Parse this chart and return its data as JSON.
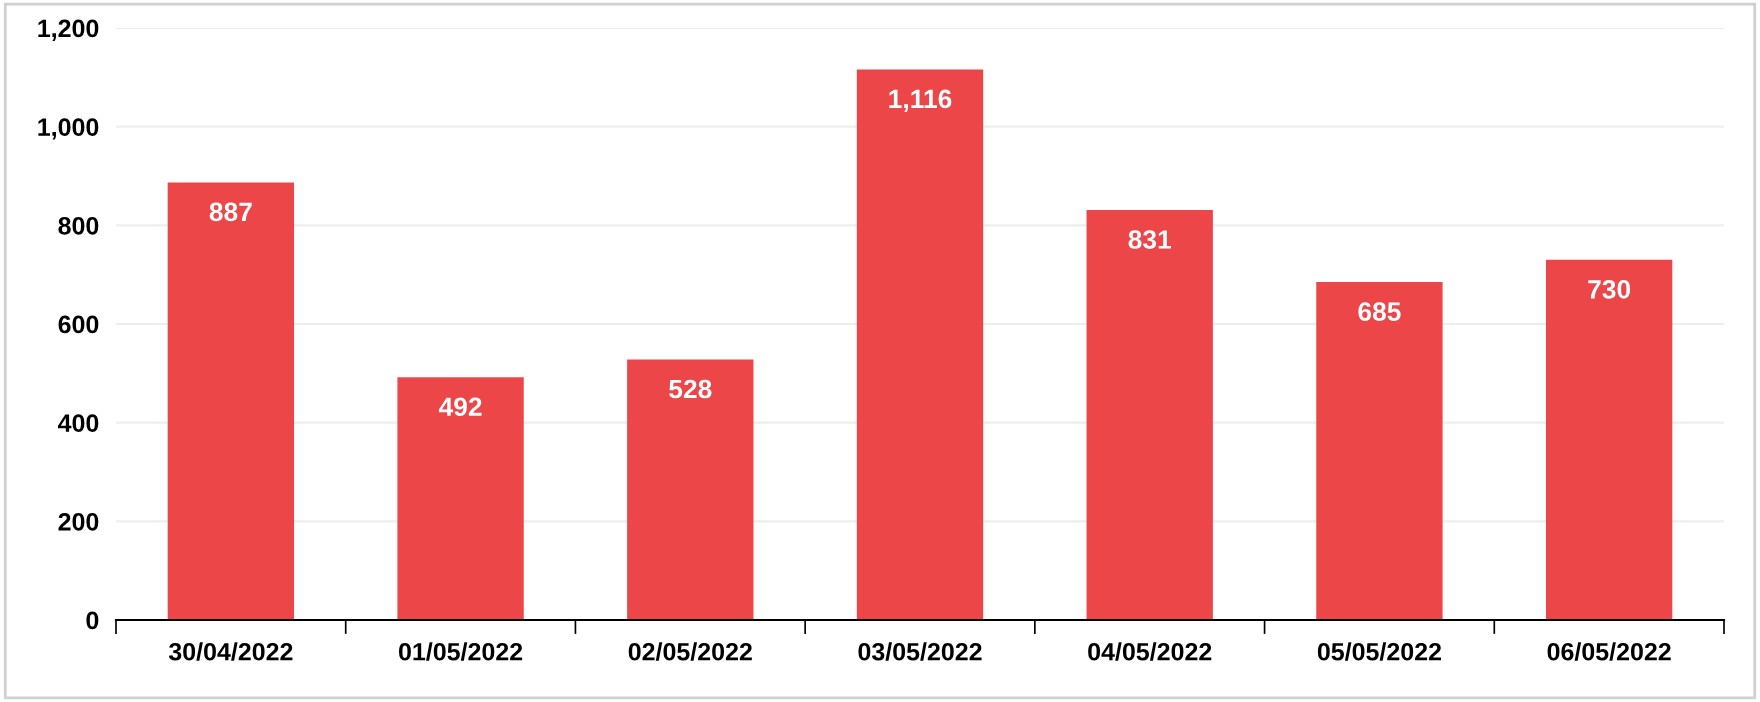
{
  "chart_data": {
    "type": "bar",
    "categories": [
      "30/04/2022",
      "01/05/2022",
      "02/05/2022",
      "03/05/2022",
      "04/05/2022",
      "05/05/2022",
      "06/05/2022"
    ],
    "values": [
      887,
      492,
      528,
      1116,
      831,
      685,
      730
    ],
    "value_labels": [
      "887",
      "492",
      "528",
      "1,116",
      "831",
      "685",
      "730"
    ],
    "color": "#ec4648",
    "ylim": [
      0,
      1200
    ],
    "yticks": [
      0,
      200,
      400,
      600,
      800,
      {
        "value": 1000,
        "label": "1,000"
      },
      {
        "value": 1200,
        "label": "1,200"
      }
    ],
    "grid": "y"
  }
}
